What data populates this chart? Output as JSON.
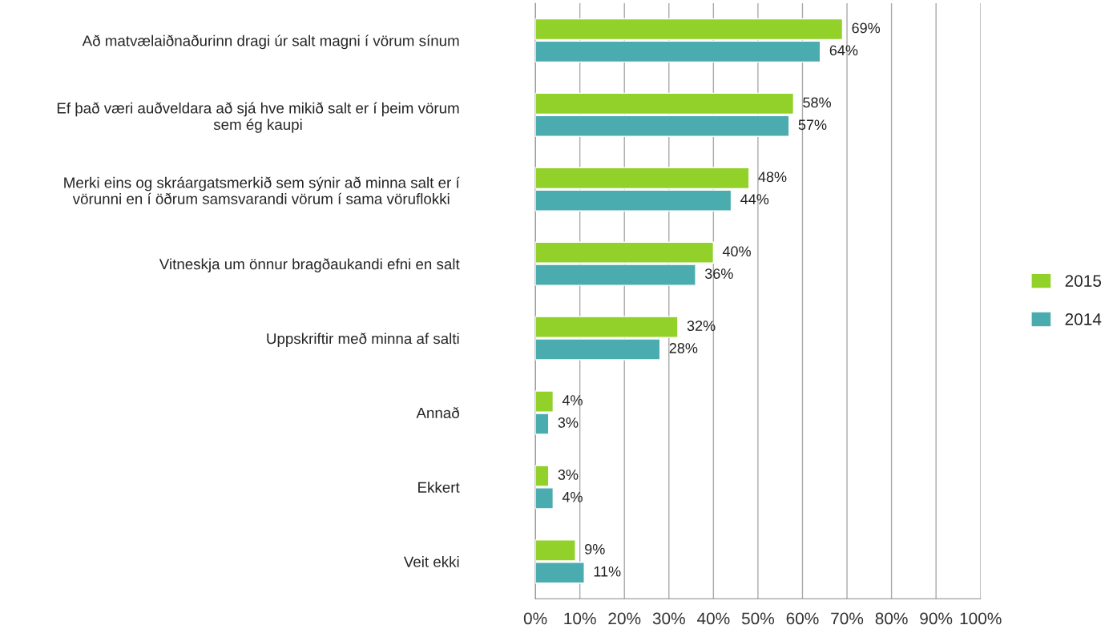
{
  "chart_data": {
    "type": "bar",
    "orientation": "horizontal",
    "categories": [
      "Að matvælaiðnaðurinn dragi úr salt magni í vörum sínum",
      "Ef það væri auðveldara að sjá hve mikið salt er í þeim vörum\nsem ég kaupi",
      "Merki eins og skráargatsmerkið sem sýnir að minna salt er í\nvörunni en í öðrum samsvarandi vörum í sama vöruflokki",
      "Vitneskja um önnur bragðaukandi efni en salt",
      "Uppskriftir með minna af salti",
      "Annað",
      "Ekkert",
      "Veit ekki"
    ],
    "series": [
      {
        "name": "2015",
        "color": "#92d12a",
        "values": [
          69,
          58,
          48,
          40,
          32,
          4,
          3,
          9
        ],
        "value_labels": [
          "69%",
          "58%",
          "48%",
          "40%",
          "32%",
          "4%",
          "3%",
          "9%"
        ]
      },
      {
        "name": "2014",
        "color": "#4bacb0",
        "values": [
          64,
          57,
          44,
          36,
          28,
          3,
          4,
          11
        ],
        "value_labels": [
          "64%",
          "57%",
          "44%",
          "36%",
          "28%",
          "3%",
          "4%",
          "11%"
        ]
      }
    ],
    "xlim": [
      0,
      100
    ],
    "xticks": [
      {
        "value": 0,
        "label": "0%"
      },
      {
        "value": 10,
        "label": "10%"
      },
      {
        "value": 20,
        "label": "20%"
      },
      {
        "value": 30,
        "label": "30%"
      },
      {
        "value": 40,
        "label": "40%"
      },
      {
        "value": 50,
        "label": "50%"
      },
      {
        "value": 60,
        "label": "60%"
      },
      {
        "value": 70,
        "label": "70%"
      },
      {
        "value": 80,
        "label": "80%"
      },
      {
        "value": 90,
        "label": "90%"
      },
      {
        "value": 100,
        "label": "100%"
      }
    ],
    "grid": "x",
    "legend": "right"
  }
}
